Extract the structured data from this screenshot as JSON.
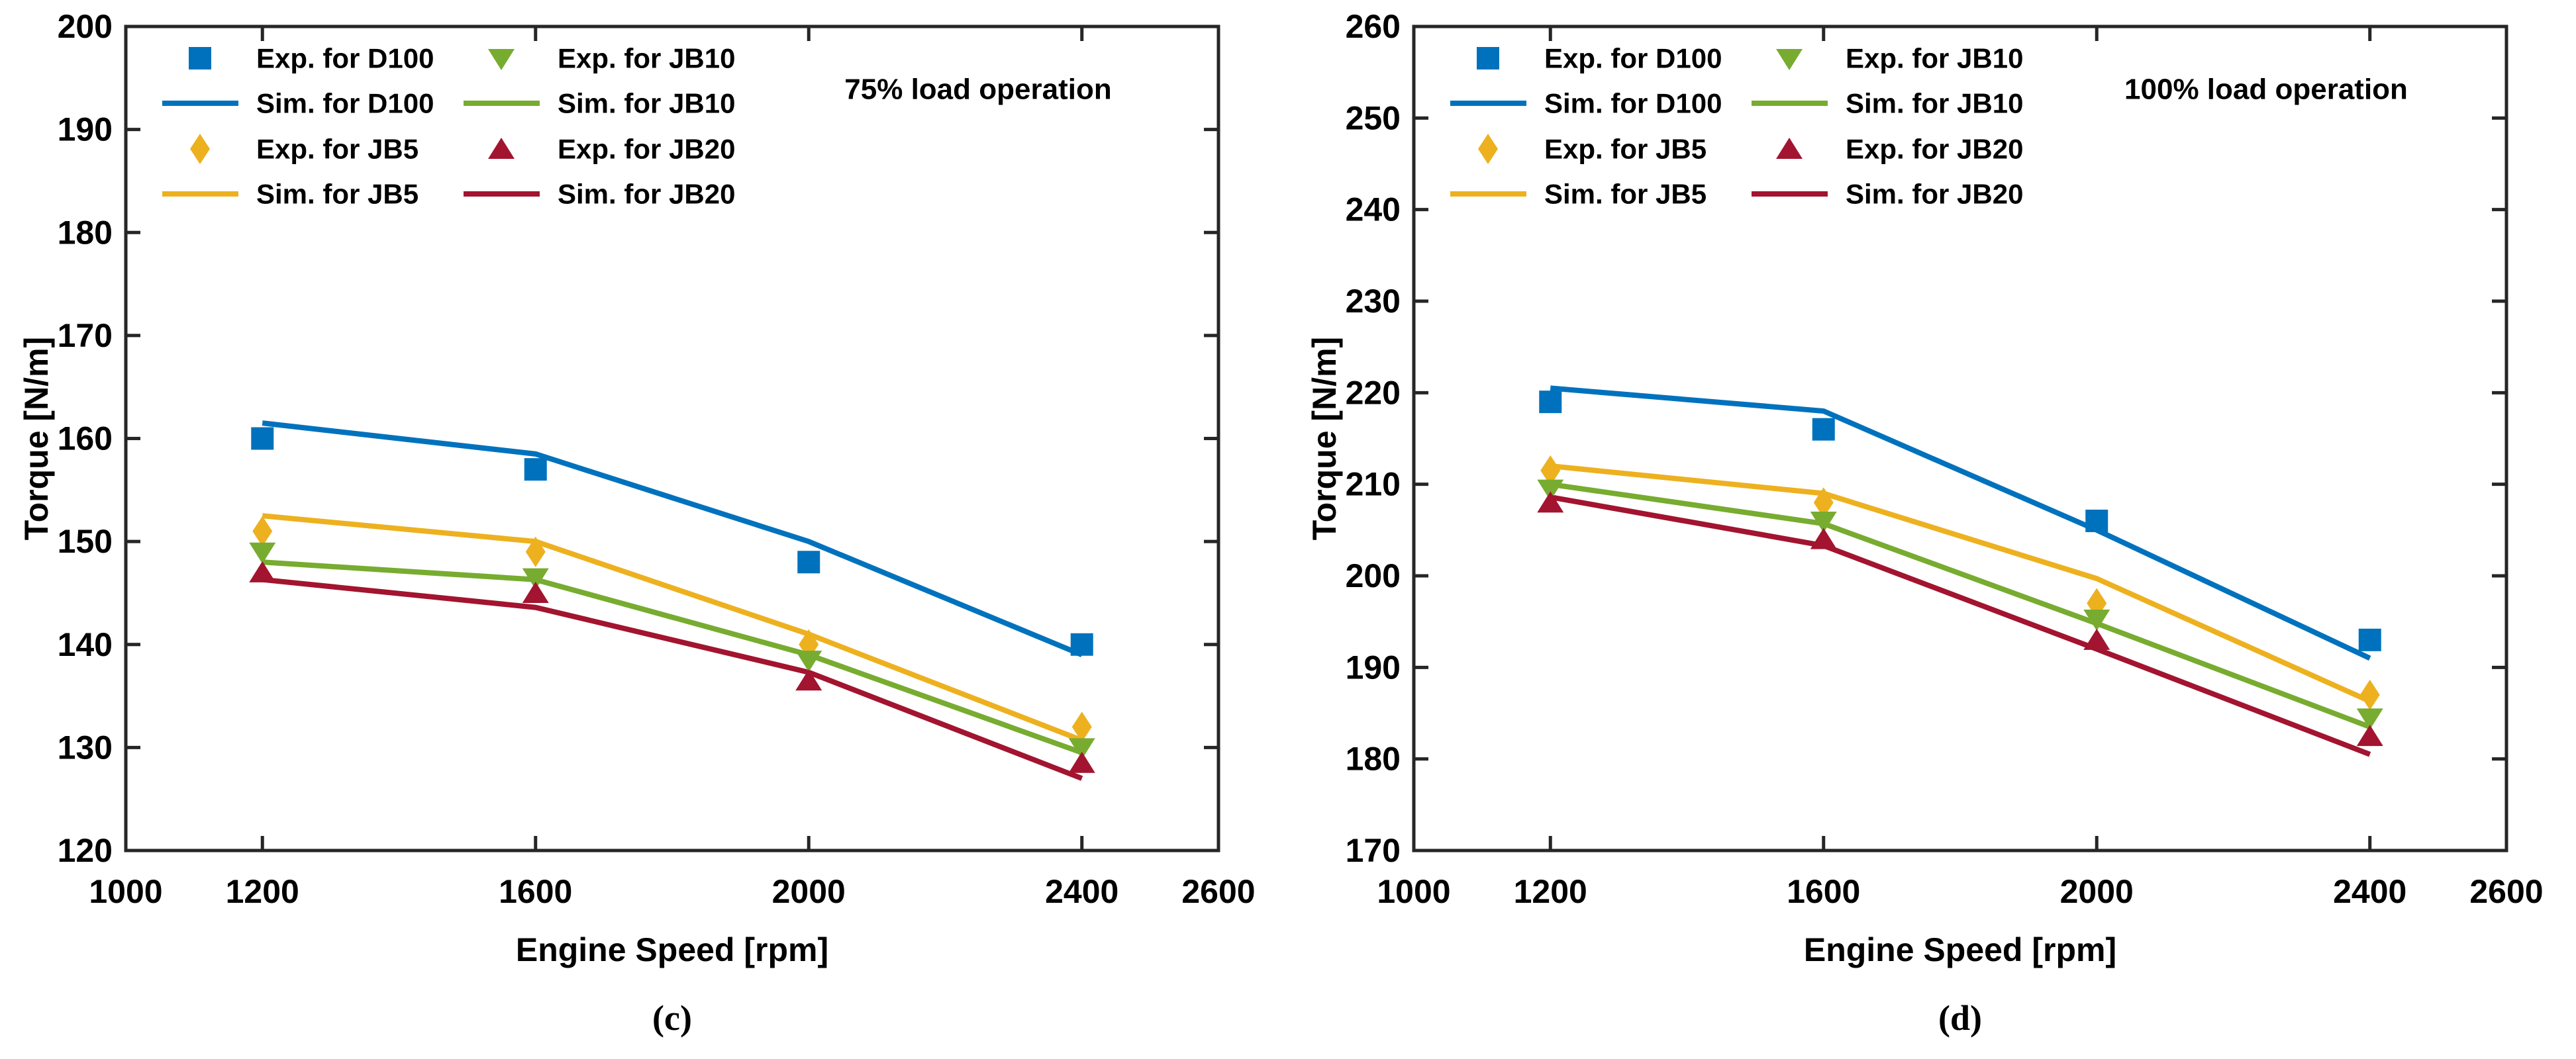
{
  "figure": {
    "kind": "dual-panel torque vs engine-speed comparison",
    "colors": {
      "blue": "#0072BD",
      "yellow": "#EDB120",
      "green": "#77AC30",
      "dark_red": "#A2142F",
      "axis": "#262626",
      "text": "#000000"
    }
  },
  "chart_data": [
    {
      "type": "line",
      "title": "75% load operation",
      "caption": "(c)",
      "xlabel": "Engine Speed [rpm]",
      "ylabel": "Torque [N/m]",
      "xlim": [
        1000,
        2600
      ],
      "ylim": [
        120,
        200
      ],
      "xticks": [
        1000,
        1200,
        1600,
        2000,
        2400,
        2600
      ],
      "yticks": [
        120,
        130,
        140,
        150,
        160,
        170,
        180,
        190,
        200
      ],
      "grid": false,
      "legend_position": "top-left-inside",
      "x": [
        1200,
        1600,
        2000,
        2400
      ],
      "series": [
        {
          "name": "Exp. for D100",
          "kind": "marker",
          "marker": "square",
          "color": "blue",
          "values": [
            160,
            157,
            148,
            140
          ]
        },
        {
          "name": "Sim. for D100",
          "kind": "line",
          "marker": null,
          "color": "blue",
          "values": [
            161.5,
            158.5,
            150,
            139
          ]
        },
        {
          "name": "Exp. for JB5",
          "kind": "marker",
          "marker": "diamond",
          "color": "yellow",
          "values": [
            151,
            149,
            140,
            132
          ]
        },
        {
          "name": "Sim. for JB5",
          "kind": "line",
          "marker": null,
          "color": "yellow",
          "values": [
            152.5,
            150,
            141,
            130.7
          ]
        },
        {
          "name": "Exp. for JB10",
          "kind": "marker",
          "marker": "triangle-down",
          "color": "green",
          "values": [
            149,
            146.5,
            138.5,
            130
          ]
        },
        {
          "name": "Sim. for JB10",
          "kind": "line",
          "marker": null,
          "color": "green",
          "values": [
            148,
            146.3,
            139,
            129.5
          ]
        },
        {
          "name": "Exp. for JB20",
          "kind": "marker",
          "marker": "triangle-up",
          "color": "dark_red",
          "values": [
            147,
            145,
            136.5,
            128.5
          ]
        },
        {
          "name": "Sim. for JB20",
          "kind": "line",
          "marker": null,
          "color": "dark_red",
          "values": [
            146.3,
            143.6,
            137.3,
            127
          ]
        }
      ]
    },
    {
      "type": "line",
      "title": "100% load operation",
      "caption": "(d)",
      "xlabel": "Engine Speed [rpm]",
      "ylabel": "Torque [N/m]",
      "xlim": [
        1000,
        2600
      ],
      "ylim": [
        170,
        260
      ],
      "xticks": [
        1000,
        1200,
        1600,
        2000,
        2400,
        2600
      ],
      "yticks": [
        170,
        180,
        190,
        200,
        210,
        220,
        230,
        240,
        250,
        260
      ],
      "grid": false,
      "legend_position": "top-left-inside",
      "x": [
        1200,
        1600,
        2000,
        2400
      ],
      "series": [
        {
          "name": "Exp. for D100",
          "kind": "marker",
          "marker": "square",
          "color": "blue",
          "values": [
            219,
            216,
            206,
            193
          ]
        },
        {
          "name": "Sim. for D100",
          "kind": "line",
          "marker": null,
          "color": "blue",
          "values": [
            220.5,
            218,
            205,
            191
          ]
        },
        {
          "name": "Exp. for JB5",
          "kind": "marker",
          "marker": "diamond",
          "color": "yellow",
          "values": [
            211.5,
            208,
            197,
            187
          ]
        },
        {
          "name": "Sim. for JB5",
          "kind": "line",
          "marker": null,
          "color": "yellow",
          "values": [
            212,
            209,
            199.7,
            186.3
          ]
        },
        {
          "name": "Exp. for JB10",
          "kind": "marker",
          "marker": "triangle-down",
          "color": "green",
          "values": [
            209.5,
            206,
            195.3,
            184.5
          ]
        },
        {
          "name": "Sim. for JB10",
          "kind": "line",
          "marker": null,
          "color": "green",
          "values": [
            210,
            205.7,
            194.8,
            183.5
          ]
        },
        {
          "name": "Exp. for JB20",
          "kind": "marker",
          "marker": "triangle-up",
          "color": "dark_red",
          "values": [
            208,
            204,
            193,
            182.5
          ]
        },
        {
          "name": "Sim. for JB20",
          "kind": "line",
          "marker": null,
          "color": "dark_red",
          "values": [
            208.6,
            203.3,
            192,
            180.5
          ]
        }
      ]
    }
  ]
}
